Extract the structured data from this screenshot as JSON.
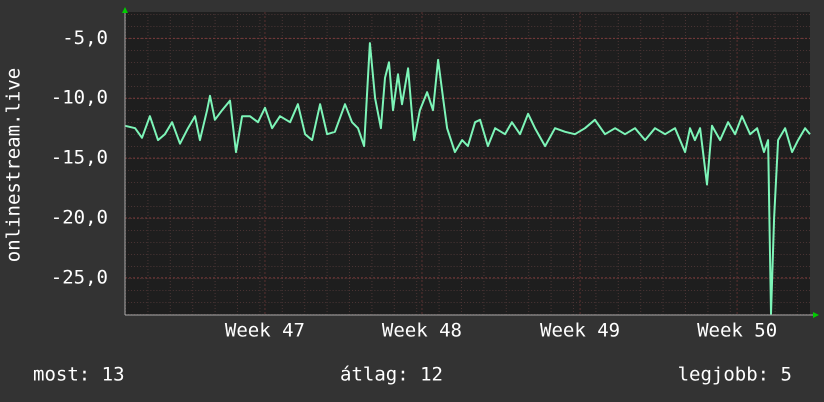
{
  "chart_data": {
    "type": "line",
    "y_label": "onlinestream.live",
    "ylim": [
      -28.1,
      -2.8
    ],
    "yticks": [
      {
        "value": -5,
        "label": "-5,0"
      },
      {
        "value": -10,
        "label": "-10,0"
      },
      {
        "value": -15,
        "label": "-15,0"
      },
      {
        "value": -20,
        "label": "-20,0"
      },
      {
        "value": -25,
        "label": "-25,0"
      }
    ],
    "xlim": [
      0,
      30.54
    ],
    "xticks": [
      {
        "value": 6.24,
        "label": "Week 47"
      },
      {
        "value": 13.24,
        "label": "Week 48"
      },
      {
        "value": 20.29,
        "label": "Week 49"
      },
      {
        "value": 27.29,
        "label": "Week 50"
      }
    ],
    "grid": true,
    "series": [
      {
        "color": "#7df5b8",
        "x": [
          0,
          0.45,
          0.76,
          1.11,
          1.47,
          1.78,
          2.1,
          2.45,
          2.81,
          3.12,
          3.34,
          3.66,
          3.79,
          4.01,
          4.33,
          4.68,
          4.95,
          5.22,
          5.57,
          5.93,
          6.24,
          6.56,
          6.91,
          7.36,
          7.71,
          8.03,
          8.34,
          8.7,
          9.01,
          9.36,
          9.81,
          10.12,
          10.39,
          10.66,
          10.92,
          11.15,
          11.41,
          11.59,
          11.77,
          11.95,
          12.17,
          12.35,
          12.62,
          12.89,
          13.15,
          13.47,
          13.73,
          13.96,
          14.18,
          14.36,
          14.71,
          15.03,
          15.29,
          15.61,
          15.83,
          16.18,
          16.5,
          16.94,
          17.25,
          17.61,
          17.97,
          18.28,
          18.73,
          19.17,
          19.62,
          20.06,
          20.51,
          20.95,
          21.4,
          21.85,
          22.29,
          22.74,
          23.19,
          23.63,
          24.08,
          24.52,
          24.97,
          25.19,
          25.41,
          25.64,
          25.95,
          26.17,
          26.53,
          26.89,
          27.2,
          27.51,
          27.87,
          28.18,
          28.49,
          28.67,
          28.8,
          28.94,
          29.12,
          29.43,
          29.74,
          30.01,
          30.32,
          30.54
        ],
        "values": [
          -12.3,
          -12.5,
          -13.3,
          -11.5,
          -13.5,
          -13,
          -12,
          -13.8,
          -12.5,
          -11.5,
          -13.5,
          -11,
          -9.8,
          -11.8,
          -11,
          -10.2,
          -14.5,
          -11.5,
          -11.5,
          -12,
          -10.8,
          -12.5,
          -11.5,
          -12,
          -10.5,
          -13,
          -13.5,
          -10.5,
          -13,
          -12.8,
          -10.5,
          -12,
          -12.5,
          -14,
          -5.4,
          -10,
          -12.5,
          -8.3,
          -7,
          -11,
          -8,
          -10.5,
          -7.5,
          -13.5,
          -11,
          -9.5,
          -11,
          -6.8,
          -10,
          -12.5,
          -14.5,
          -13.5,
          -14,
          -12,
          -11.8,
          -14,
          -12.5,
          -13,
          -12,
          -13,
          -11.3,
          -12.5,
          -14,
          -12.5,
          -12.8,
          -13,
          -12.5,
          -11.8,
          -13,
          -12.5,
          -13,
          -12.5,
          -13.5,
          -12.5,
          -13,
          -12.5,
          -14.5,
          -12.5,
          -13.5,
          -12.5,
          -17.2,
          -12.3,
          -13.5,
          -12,
          -13,
          -11.5,
          -13,
          -12.5,
          -14.5,
          -13.5,
          -28,
          -20,
          -13.5,
          -12.5,
          -14.5,
          -13.5,
          -12.5,
          -13
        ]
      }
    ]
  },
  "footer": {
    "current": "most: 13",
    "average": "átlag: 12",
    "best": "legjobb: 5"
  }
}
